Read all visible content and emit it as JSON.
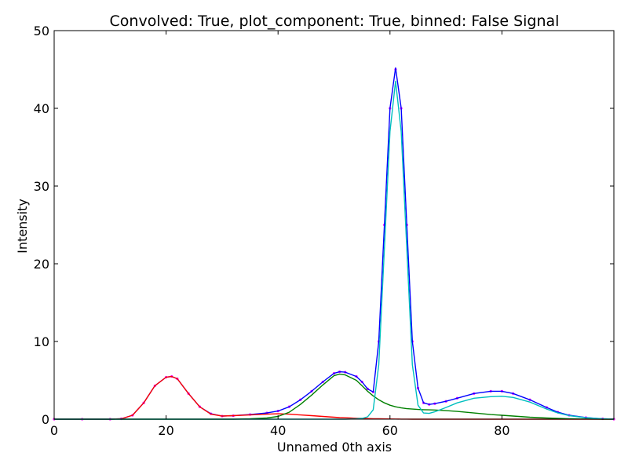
{
  "chart_data": {
    "type": "line",
    "title": "Convolved: True, plot_component: True, binned: False Signal",
    "xlabel": "Unnamed 0th axis",
    "ylabel": "Intensity",
    "xlim": [
      0,
      100
    ],
    "ylim": [
      0,
      50
    ],
    "x_ticks": [
      0,
      20,
      40,
      60,
      80
    ],
    "y_ticks": [
      0,
      10,
      20,
      30,
      40,
      50
    ],
    "grid": false,
    "legend": "none",
    "x": [
      0,
      5,
      10,
      12,
      14,
      16,
      18,
      20,
      21,
      22,
      24,
      26,
      28,
      30,
      32,
      35,
      38,
      40,
      42,
      44,
      46,
      48,
      50,
      51,
      52,
      54,
      55,
      56,
      57,
      58,
      59,
      60,
      61,
      62,
      63,
      64,
      65,
      66,
      67,
      68,
      70,
      72,
      75,
      78,
      80,
      82,
      85,
      88,
      90,
      92,
      95,
      98,
      100
    ],
    "series": [
      {
        "color": "#ff00ff",
        "style": "dots",
        "values": [
          0,
          0,
          0,
          0.05,
          0.5,
          2.1,
          4.3,
          5.4,
          5.5,
          5.2,
          3.3,
          1.6,
          0.7,
          0.4,
          0.45,
          0.6,
          0.8,
          1.05,
          1.6,
          2.5,
          3.6,
          4.8,
          5.9,
          6.1,
          6.05,
          5.5,
          4.8,
          3.9,
          3.5,
          10,
          25,
          40,
          45,
          40,
          25,
          10,
          4,
          2.1,
          1.9,
          2,
          2.3,
          2.7,
          3.3,
          3.6,
          3.6,
          3.3,
          2.5,
          1.5,
          0.9,
          0.5,
          0.2,
          0.05,
          0
        ]
      },
      {
        "color": "#0000ff",
        "style": "line",
        "values": [
          0,
          0,
          0,
          0.05,
          0.5,
          2.1,
          4.3,
          5.4,
          5.5,
          5.2,
          3.3,
          1.6,
          0.7,
          0.4,
          0.45,
          0.6,
          0.8,
          1.05,
          1.6,
          2.5,
          3.6,
          4.8,
          5.9,
          6.1,
          6.05,
          5.5,
          4.8,
          3.9,
          3.5,
          10,
          25,
          40,
          45.2,
          40,
          25,
          10,
          4,
          2.1,
          1.9,
          2,
          2.3,
          2.7,
          3.3,
          3.6,
          3.6,
          3.3,
          2.5,
          1.5,
          0.9,
          0.5,
          0.2,
          0.05,
          0
        ]
      },
      {
        "color": "#ff0000",
        "style": "line",
        "values": [
          0,
          0,
          0,
          0.05,
          0.5,
          2.1,
          4.3,
          5.4,
          5.5,
          5.2,
          3.3,
          1.6,
          0.65,
          0.4,
          0.45,
          0.55,
          0.65,
          0.7,
          0.65,
          0.55,
          0.45,
          0.35,
          0.25,
          0.2,
          0.18,
          0.12,
          0.1,
          0.08,
          0.06,
          0.05,
          0.04,
          0.03,
          0.02,
          0.01,
          0.01,
          0,
          0,
          0,
          0,
          0,
          0,
          0,
          0,
          0,
          0,
          0,
          0,
          0,
          0,
          0,
          0,
          0,
          0
        ]
      },
      {
        "color": "#008000",
        "style": "line",
        "values": [
          0,
          0,
          0,
          0,
          0,
          0,
          0,
          0,
          0,
          0,
          0,
          0,
          0,
          0,
          0,
          0.05,
          0.15,
          0.35,
          0.9,
          1.9,
          3.1,
          4.4,
          5.6,
          5.8,
          5.7,
          5.0,
          4.3,
          3.6,
          3.0,
          2.5,
          2.1,
          1.8,
          1.6,
          1.45,
          1.35,
          1.3,
          1.25,
          1.22,
          1.2,
          1.18,
          1.1,
          1.0,
          0.8,
          0.6,
          0.5,
          0.4,
          0.25,
          0.15,
          0.1,
          0.05,
          0.02,
          0,
          0
        ]
      },
      {
        "color": "#00bfbf",
        "style": "line",
        "values": [
          0,
          0,
          0,
          0,
          0,
          0,
          0,
          0,
          0,
          0,
          0,
          0,
          0,
          0,
          0,
          0,
          0,
          0,
          0,
          0,
          0,
          0,
          0,
          0,
          0,
          0.05,
          0.1,
          0.3,
          1.2,
          7,
          22,
          37,
          43.5,
          37,
          22,
          7,
          1.8,
          0.8,
          0.75,
          0.95,
          1.5,
          2.1,
          2.7,
          2.9,
          2.95,
          2.8,
          2.2,
          1.3,
          0.8,
          0.45,
          0.18,
          0.05,
          0
        ]
      }
    ]
  }
}
